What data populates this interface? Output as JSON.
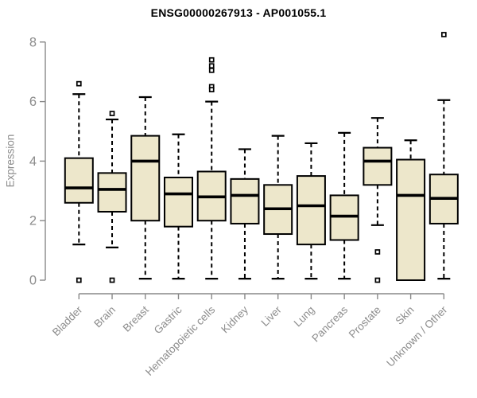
{
  "figure": {
    "background": "#FFFFFF"
  },
  "chart_data": {
    "type": "boxplot",
    "title": "ENSG00000267913 - AP001055.1",
    "xlabel": "",
    "ylabel": "Expression",
    "ylim": [
      0,
      8.4
    ],
    "yticks": [
      0,
      2,
      4,
      6,
      8
    ],
    "grid": false,
    "legend": null,
    "categories": [
      "Bladder",
      "Brain",
      "Breast",
      "Gastric",
      "Hematopoietic cells",
      "Kidney",
      "Liver",
      "Lung",
      "Pancreas",
      "Prostate",
      "Skin",
      "Unknown / Other"
    ],
    "boxes": [
      {
        "category": "Bladder",
        "whisker_low": 1.2,
        "q1": 2.6,
        "median": 3.1,
        "q3": 4.1,
        "whisker_high": 6.25,
        "outliers": [
          6.6,
          0.0
        ]
      },
      {
        "category": "Brain",
        "whisker_low": 1.1,
        "q1": 2.3,
        "median": 3.05,
        "q3": 3.6,
        "whisker_high": 5.4,
        "outliers": [
          5.6,
          0.0
        ]
      },
      {
        "category": "Breast",
        "whisker_low": 0.05,
        "q1": 2.0,
        "median": 4.0,
        "q3": 4.85,
        "whisker_high": 6.15,
        "outliers": []
      },
      {
        "category": "Gastric",
        "whisker_low": 0.05,
        "q1": 1.8,
        "median": 2.9,
        "q3": 3.45,
        "whisker_high": 4.9,
        "outliers": []
      },
      {
        "category": "Hematopoietic cells",
        "whisker_low": 0.05,
        "q1": 2.0,
        "median": 2.8,
        "q3": 3.65,
        "whisker_high": 6.0,
        "outliers": [
          7.4,
          7.2,
          7.05,
          6.5,
          6.4
        ]
      },
      {
        "category": "Kidney",
        "whisker_low": 0.05,
        "q1": 1.9,
        "median": 2.85,
        "q3": 3.4,
        "whisker_high": 4.4,
        "outliers": []
      },
      {
        "category": "Liver",
        "whisker_low": 0.05,
        "q1": 1.55,
        "median": 2.4,
        "q3": 3.2,
        "whisker_high": 4.85,
        "outliers": []
      },
      {
        "category": "Lung",
        "whisker_low": 0.05,
        "q1": 1.2,
        "median": 2.5,
        "q3": 3.5,
        "whisker_high": 4.6,
        "outliers": []
      },
      {
        "category": "Pancreas",
        "whisker_low": 0.05,
        "q1": 1.35,
        "median": 2.15,
        "q3": 2.85,
        "whisker_high": 4.95,
        "outliers": []
      },
      {
        "category": "Prostate",
        "whisker_low": 1.85,
        "q1": 3.2,
        "median": 4.0,
        "q3": 4.45,
        "whisker_high": 5.45,
        "outliers": [
          0.95,
          0.0
        ]
      },
      {
        "category": "Skin",
        "whisker_low": 0.0,
        "q1": 0.0,
        "median": 2.85,
        "q3": 4.05,
        "whisker_high": 4.7,
        "outliers": []
      },
      {
        "category": "Unknown / Other",
        "whisker_low": 0.05,
        "q1": 1.9,
        "median": 2.75,
        "q3": 3.55,
        "whisker_high": 6.05,
        "outliers": [
          8.25
        ]
      }
    ],
    "colors": {
      "box_fill": "#EDE7CB",
      "box_stroke": "#000000",
      "median": "#000000",
      "whisker": "#000000",
      "outlier_stroke": "#000000",
      "axis": "#898989",
      "tick_label": "#8C8C8C",
      "title": "#000000"
    }
  }
}
